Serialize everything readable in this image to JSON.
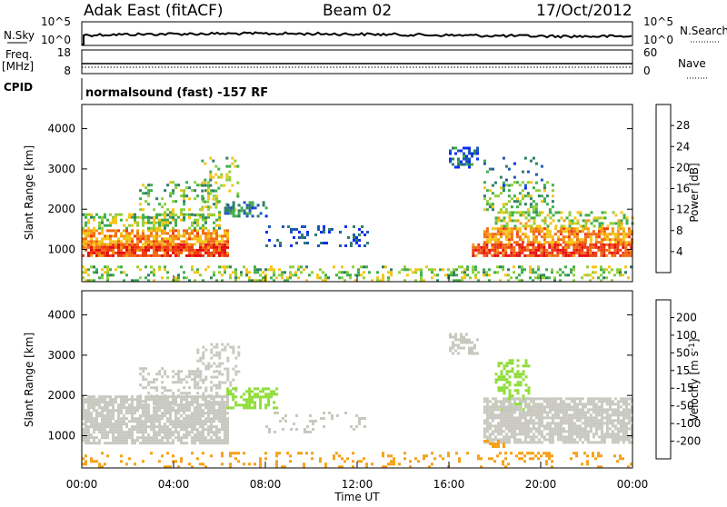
{
  "header": {
    "station": "Adak East (fitACF)",
    "beam": "Beam 02",
    "date": "17/Oct/2012"
  },
  "params": {
    "nsky_label": "N.Sky",
    "nsearch_label": "N.Search",
    "freq_label_1": "Freq.",
    "freq_label_2": "[MHz]",
    "nave_label": "Nave",
    "cpid_label": "CPID",
    "noise_ticks_left": [
      "10^5",
      "10^0"
    ],
    "noise_ticks_right": [
      "10^5",
      "10^0"
    ],
    "freq_ticks": [
      "18",
      "8"
    ],
    "nave_ticks": [
      "60",
      "0"
    ],
    "mode_text": "normalsound (fast) -157 RF"
  },
  "chart_data": [
    {
      "type": "heatmap",
      "panel": "power",
      "xlabel": "",
      "ylabel": "Slant Range [km]",
      "xlim": [
        0,
        24
      ],
      "ylim": [
        200,
        4600
      ],
      "yticks": [
        1000,
        2000,
        3000,
        4000
      ],
      "colorbar_label": "Power [dB]",
      "colorbar_ticks": [
        "4",
        "8",
        "12",
        "16",
        "20",
        "24",
        "28"
      ],
      "colorbar_colors": [
        "#0a2cf5",
        "#1e58b8",
        "#2f7f66",
        "#3fae4c",
        "#8fcf3a",
        "#f5c518",
        "#f59a14",
        "#f26a12",
        "#ee3a10",
        "#e60d0d"
      ],
      "regions": [
        {
          "x": [
            0.0,
            6.3
          ],
          "y": [
            820,
            1150
          ],
          "value": 27,
          "density": 0.85
        },
        {
          "x": [
            0.0,
            6.3
          ],
          "y": [
            1150,
            1500
          ],
          "value": 22,
          "density": 0.7
        },
        {
          "x": [
            0.0,
            6.0
          ],
          "y": [
            1500,
            1900
          ],
          "value": 15,
          "density": 0.45
        },
        {
          "x": [
            2.5,
            6.0
          ],
          "y": [
            1800,
            2700
          ],
          "value": 14,
          "density": 0.25
        },
        {
          "x": [
            5.2,
            6.8
          ],
          "y": [
            2000,
            3300
          ],
          "value": 14,
          "density": 0.25
        },
        {
          "x": [
            6.2,
            8.0
          ],
          "y": [
            1800,
            2200
          ],
          "value": 9,
          "density": 0.5
        },
        {
          "x": [
            8.0,
            12.5
          ],
          "y": [
            1100,
            1600
          ],
          "value": 6,
          "density": 0.2
        },
        {
          "x": [
            16.0,
            17.2
          ],
          "y": [
            3050,
            3550
          ],
          "value": 7,
          "density": 0.5
        },
        {
          "x": [
            17.0,
            24.0
          ],
          "y": [
            820,
            1150
          ],
          "value": 27,
          "density": 0.85
        },
        {
          "x": [
            17.5,
            24.0
          ],
          "y": [
            1150,
            1550
          ],
          "value": 22,
          "density": 0.7
        },
        {
          "x": [
            18.0,
            24.0
          ],
          "y": [
            1550,
            1950
          ],
          "value": 16,
          "density": 0.45
        },
        {
          "x": [
            17.5,
            20.5
          ],
          "y": [
            1950,
            2700
          ],
          "value": 14,
          "density": 0.3
        },
        {
          "x": [
            17.5,
            20.0
          ],
          "y": [
            2500,
            3300
          ],
          "value": 9,
          "density": 0.12
        },
        {
          "x": [
            0.0,
            24.0
          ],
          "y": [
            250,
            600
          ],
          "value": 15,
          "density": 0.3
        }
      ]
    },
    {
      "type": "heatmap",
      "panel": "velocity",
      "xlabel": "Time UT",
      "ylabel": "Slant Range [km]",
      "xlim": [
        0,
        24
      ],
      "ylim": [
        200,
        4600
      ],
      "yticks": [
        1000,
        2000,
        3000,
        4000
      ],
      "xticks": [
        "00:00",
        "04:00",
        "08:00",
        "12:00",
        "16:00",
        "20:00",
        "00:00"
      ],
      "colorbar_label": "Velocity [m s^-1]",
      "colorbar_ticks": [
        "-200",
        "-100",
        "-50",
        "-15",
        "15",
        "50",
        "100",
        "200"
      ],
      "colorbar_colors": [
        "#e60d0d",
        "#f26a12",
        "#f5a014",
        "#c8c8c0",
        "#c8c8c0",
        "#8fdc3a",
        "#3fa046",
        "#2f7f66",
        "#1e3fb8"
      ],
      "regions": [
        {
          "x": [
            0.0,
            6.3
          ],
          "y": [
            800,
            2000
          ],
          "value": 0,
          "density": 0.8
        },
        {
          "x": [
            2.5,
            6.0
          ],
          "y": [
            1800,
            2700
          ],
          "value": 0,
          "density": 0.3
        },
        {
          "x": [
            5.0,
            6.8
          ],
          "y": [
            2000,
            3300
          ],
          "value": -20,
          "density": 0.3
        },
        {
          "x": [
            6.3,
            8.5
          ],
          "y": [
            1700,
            2200
          ],
          "value": 60,
          "density": 0.45
        },
        {
          "x": [
            8.0,
            12.5
          ],
          "y": [
            1100,
            1600
          ],
          "value": 0,
          "density": 0.15
        },
        {
          "x": [
            16.0,
            17.2
          ],
          "y": [
            3050,
            3550
          ],
          "value": -15,
          "density": 0.45
        },
        {
          "x": [
            18.0,
            19.5
          ],
          "y": [
            1650,
            2900
          ],
          "value": 60,
          "density": 0.35
        },
        {
          "x": [
            17.5,
            24.0
          ],
          "y": [
            800,
            1950
          ],
          "value": 0,
          "density": 0.8
        },
        {
          "x": [
            17.5,
            18.5
          ],
          "y": [
            750,
            900
          ],
          "value": -60,
          "density": 0.5
        },
        {
          "x": [
            0.0,
            24.0
          ],
          "y": [
            250,
            600
          ],
          "value": -40,
          "density": 0.15
        }
      ]
    }
  ],
  "colors": {
    "axis": "#000000",
    "background": "#ffffff"
  }
}
